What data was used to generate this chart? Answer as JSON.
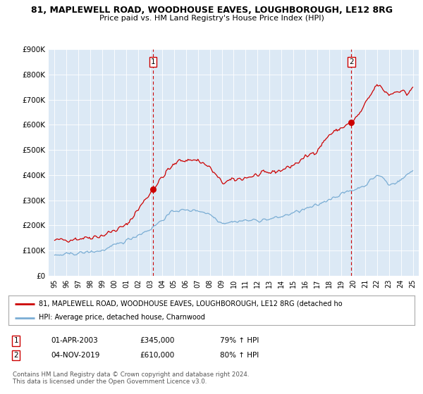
{
  "title": "81, MAPLEWELL ROAD, WOODHOUSE EAVES, LOUGHBOROUGH, LE12 8RG",
  "subtitle": "Price paid vs. HM Land Registry's House Price Index (HPI)",
  "bg_color": "#dce9f5",
  "red_line_color": "#cc0000",
  "blue_line_color": "#7aadd4",
  "dashed_line_color": "#cc0000",
  "marker_color": "#cc0000",
  "ylim": [
    0,
    900000
  ],
  "yticks": [
    0,
    100000,
    200000,
    300000,
    400000,
    500000,
    600000,
    700000,
    800000,
    900000
  ],
  "ytick_labels": [
    "£0",
    "£100K",
    "£200K",
    "£300K",
    "£400K",
    "£500K",
    "£600K",
    "£700K",
    "£800K",
    "£900K"
  ],
  "xlim": [
    1994.5,
    2025.5
  ],
  "annotation1": {
    "x_year": 2003.25,
    "y": 345000,
    "label": "1",
    "date": "01-APR-2003",
    "price": "£345,000",
    "hpi": "79% ↑ HPI"
  },
  "annotation2": {
    "x_year": 2019.85,
    "y": 610000,
    "label": "2",
    "date": "04-NOV-2019",
    "price": "£610,000",
    "hpi": "80% ↑ HPI"
  },
  "legend_red": "81, MAPLEWELL ROAD, WOODHOUSE EAVES, LOUGHBOROUGH, LE12 8RG (detached ho",
  "legend_blue": "HPI: Average price, detached house, Charnwood",
  "footnote": "Contains HM Land Registry data © Crown copyright and database right 2024.\nThis data is licensed under the Open Government Licence v3.0."
}
